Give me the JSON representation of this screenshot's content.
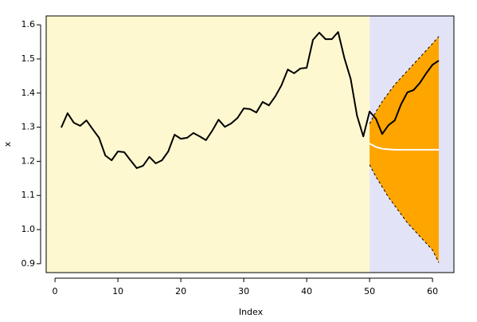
{
  "chart_data": {
    "type": "line",
    "xlabel": "Index",
    "ylabel": "x",
    "xlim": [
      -1.4,
      63.4
    ],
    "ylim": [
      0.874,
      1.626
    ],
    "xticks": [
      0,
      10,
      20,
      30,
      40,
      50,
      60
    ],
    "yticks": [
      0.9,
      {
        "value": 1,
        "label": "1.0"
      },
      1.1,
      1.2,
      1.3,
      1.4,
      1.5,
      1.6
    ],
    "history_background": "#fdf8d0",
    "forecast_background": "#e3e3f8",
    "forecast_start": 50,
    "band": {
      "color": "#ffa500",
      "x": [
        50,
        51,
        52,
        53,
        54,
        55,
        56,
        57,
        58,
        59,
        60,
        61
      ],
      "upper": [
        1.31,
        1.345,
        1.375,
        1.4,
        1.425,
        1.445,
        1.465,
        1.485,
        1.505,
        1.525,
        1.545,
        1.566
      ],
      "lower": [
        1.19,
        1.155,
        1.125,
        1.095,
        1.07,
        1.045,
        1.02,
        1.0,
        0.98,
        0.96,
        0.94,
        0.903
      ]
    },
    "series": [
      {
        "color": "#000000",
        "x": [
          1,
          2,
          3,
          4,
          5,
          6,
          7,
          8,
          9,
          10,
          11,
          12,
          13,
          14,
          15,
          16,
          17,
          18,
          19,
          20,
          21,
          22,
          23,
          24,
          25,
          26,
          27,
          28,
          29,
          30,
          31,
          32,
          33,
          34,
          35,
          36,
          37,
          38,
          39,
          40,
          41,
          42,
          43,
          44,
          45,
          46,
          47,
          48,
          49,
          50,
          51,
          52,
          53,
          54,
          55,
          56,
          57,
          58,
          59,
          60,
          61
        ],
        "values": [
          1.299,
          1.341,
          1.313,
          1.304,
          1.32,
          1.294,
          1.269,
          1.217,
          1.203,
          1.229,
          1.227,
          1.203,
          1.18,
          1.187,
          1.213,
          1.194,
          1.203,
          1.229,
          1.278,
          1.266,
          1.269,
          1.283,
          1.273,
          1.262,
          1.29,
          1.322,
          1.301,
          1.311,
          1.327,
          1.355,
          1.353,
          1.343,
          1.374,
          1.364,
          1.39,
          1.423,
          1.469,
          1.458,
          1.472,
          1.474,
          1.556,
          1.577,
          1.558,
          1.558,
          1.579,
          1.502,
          1.441,
          1.334,
          1.273,
          1.346,
          1.325,
          1.28,
          1.306,
          1.32,
          1.367,
          1.402,
          1.409,
          1.43,
          1.458,
          1.483,
          1.495
        ]
      },
      {
        "color": "#ffffff",
        "x": [
          50,
          51,
          52,
          53,
          54,
          55,
          56,
          57,
          58,
          59,
          60,
          61
        ],
        "values": [
          1.252,
          1.242,
          1.237,
          1.235,
          1.234,
          1.234,
          1.234,
          1.234,
          1.234,
          1.234,
          1.234,
          1.234
        ]
      }
    ]
  }
}
